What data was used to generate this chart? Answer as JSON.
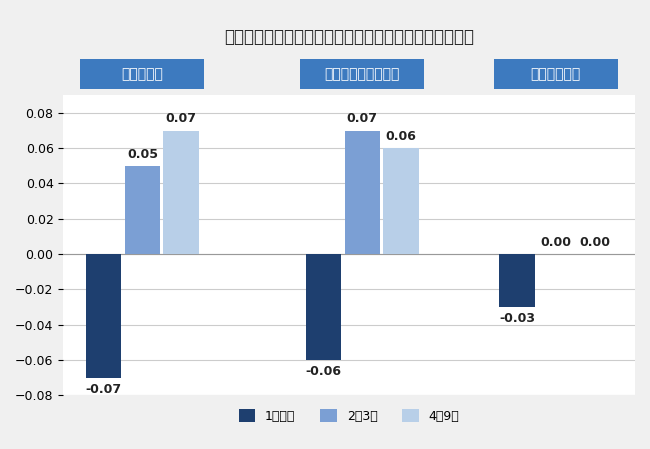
{
  "title": "最初の会社のリアリティショックと就職で調べた企業数",
  "groups": [
    "人ギャップ",
    "組織・仕事ギャップ",
    "条件ギャップ"
  ],
  "series": [
    "1社以下",
    "2〜3社",
    "4〜9社"
  ],
  "values": [
    [
      -0.07,
      0.05,
      0.07
    ],
    [
      -0.06,
      0.07,
      0.06
    ],
    [
      -0.03,
      0.0,
      0.0
    ]
  ],
  "colors": [
    "#1e3f6f",
    "#7b9fd4",
    "#b8cfe8"
  ],
  "header_color": "#3d7abf",
  "header_text_color": "#ffffff",
  "ylim": [
    -0.08,
    0.09
  ],
  "yticks": [
    -0.08,
    -0.06,
    -0.04,
    -0.02,
    0,
    0.02,
    0.04,
    0.06,
    0.08
  ],
  "background_color": "#f0f0f0",
  "plot_bg_color": "#ffffff",
  "bar_width": 0.22,
  "title_fontsize": 12,
  "label_fontsize": 9,
  "tick_fontsize": 9,
  "legend_fontsize": 9,
  "header_fontsize": 10,
  "group_centers": [
    0.5,
    1.75,
    2.85
  ],
  "xlim": [
    0.05,
    3.3
  ]
}
